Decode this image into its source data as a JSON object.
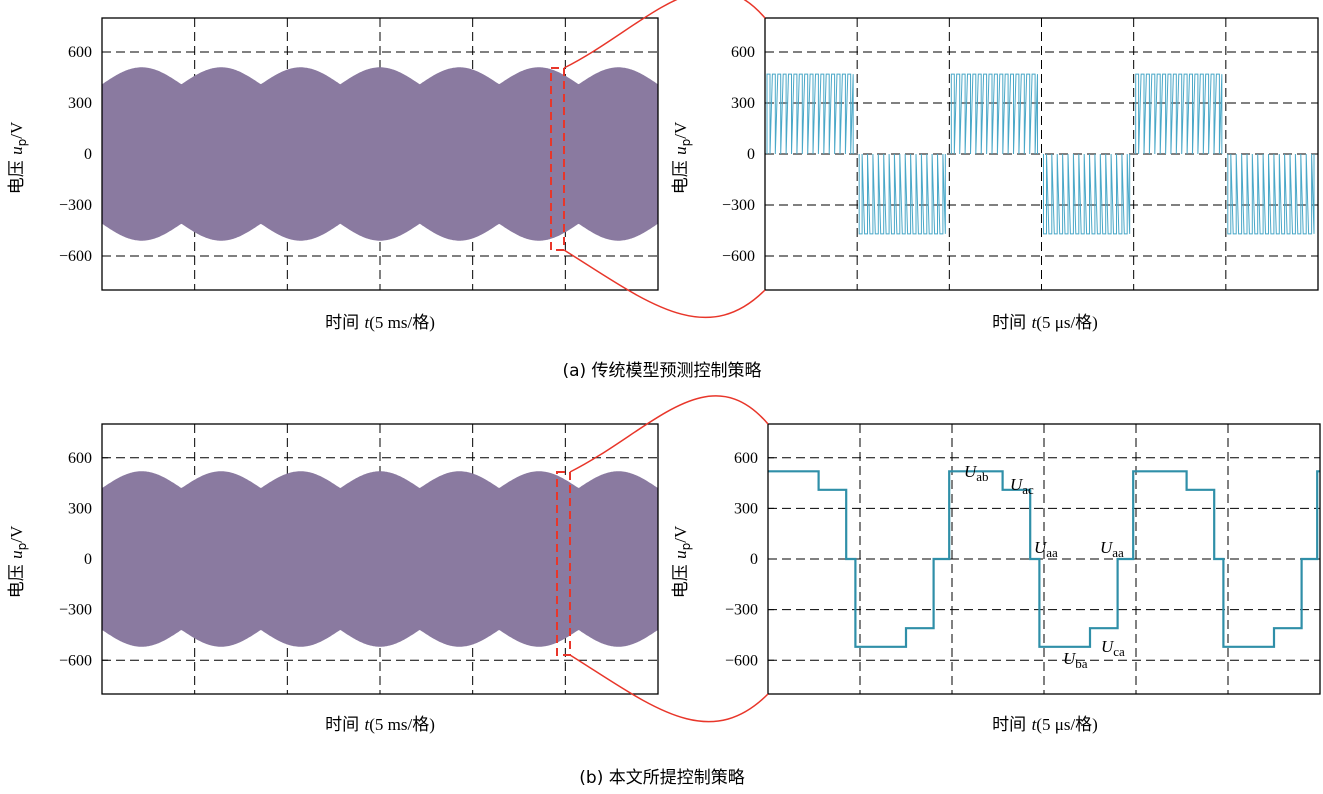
{
  "colors": {
    "wave_a": "#8a7aa0",
    "zoom_a": "#4aa8c8",
    "zoom_b": "#2f8fa8",
    "callout": "#e8362a",
    "grid": "#000000"
  },
  "panels": [
    {
      "caption": "(a) 传统模型预测控制策略",
      "left": {
        "ylabel_cn": "电压",
        "ylabel_var": "u",
        "ylabel_sub": "p",
        "ylabel_unit": "/V",
        "xlabel_cn": "时间",
        "xlabel_var": "t",
        "xlabel_unit": "(5 ms/格)"
      },
      "right": {
        "ylabel_cn": "电压",
        "ylabel_var": "u",
        "ylabel_sub": "p",
        "ylabel_unit": "/V",
        "xlabel_cn": "时间",
        "xlabel_var": "t",
        "xlabel_unit": "(5 μs/格)"
      }
    },
    {
      "caption": "(b) 本文所提控制策略",
      "left": {
        "ylabel_cn": "电压",
        "ylabel_var": "u",
        "ylabel_sub": "p",
        "ylabel_unit": "/V",
        "xlabel_cn": "时间",
        "xlabel_var": "t",
        "xlabel_unit": "(5 ms/格)"
      },
      "right": {
        "ylabel_cn": "电压",
        "ylabel_var": "u",
        "ylabel_sub": "p",
        "ylabel_unit": "/V",
        "xlabel_cn": "时间",
        "xlabel_var": "t",
        "xlabel_unit": "(5 μs/格)"
      }
    }
  ],
  "annotations_b": [
    {
      "main": "U",
      "sub": "ab"
    },
    {
      "main": "U",
      "sub": "ac"
    },
    {
      "main": "U",
      "sub": "aa"
    },
    {
      "main": "U",
      "sub": "aa"
    },
    {
      "main": "U",
      "sub": "ba"
    },
    {
      "main": "U",
      "sub": "ca"
    }
  ],
  "chart_data": [
    {
      "panel": "a-left",
      "type": "line",
      "ylim": [
        -800,
        800
      ],
      "yticks": [
        600,
        300,
        0,
        -300,
        -600
      ],
      "x_divisions": 6,
      "description_values": {
        "envelope_peak": 510,
        "envelope_min": 410,
        "envelope_humps": 7
      }
    },
    {
      "panel": "a-right",
      "type": "line",
      "ylim": [
        -800,
        800
      ],
      "yticks": [
        600,
        300,
        0,
        -300,
        -600
      ],
      "x_divisions": 6,
      "levels": [
        470,
        0,
        -470
      ],
      "segments": [
        {
          "from": 0.0,
          "to": 1.0,
          "base": 0,
          "peak": 470
        },
        {
          "from": 1.0,
          "to": 2.0,
          "base": 0,
          "peak": -470
        },
        {
          "from": 2.0,
          "to": 3.0,
          "base": 0,
          "peak": 470
        },
        {
          "from": 3.0,
          "to": 4.0,
          "base": 0,
          "peak": -470
        },
        {
          "from": 4.0,
          "to": 5.0,
          "base": 0,
          "peak": 470
        },
        {
          "from": 5.0,
          "to": 6.0,
          "base": 0,
          "peak": -470
        }
      ]
    },
    {
      "panel": "b-left",
      "type": "line",
      "ylim": [
        -800,
        800
      ],
      "yticks": [
        600,
        300,
        0,
        -300,
        -600
      ],
      "x_divisions": 6,
      "description_values": {
        "envelope_peak": 520,
        "envelope_min": 420,
        "envelope_humps": 7
      }
    },
    {
      "panel": "b-right",
      "type": "line",
      "ylim": [
        -800,
        800
      ],
      "yticks": [
        600,
        300,
        0,
        -300,
        -600
      ],
      "x_divisions": 6,
      "steps": [
        [
          0.0,
          520
        ],
        [
          0.55,
          520
        ],
        [
          0.55,
          410
        ],
        [
          0.85,
          410
        ],
        [
          0.85,
          0
        ],
        [
          0.95,
          0
        ],
        [
          0.95,
          -520
        ],
        [
          1.5,
          -520
        ],
        [
          1.5,
          -410
        ],
        [
          1.8,
          -410
        ],
        [
          1.8,
          0
        ],
        [
          1.97,
          0
        ],
        [
          1.97,
          520
        ],
        [
          2.55,
          520
        ],
        [
          2.55,
          410
        ],
        [
          2.85,
          410
        ],
        [
          2.85,
          0
        ],
        [
          2.95,
          0
        ],
        [
          2.95,
          -520
        ],
        [
          3.5,
          -520
        ],
        [
          3.5,
          -410
        ],
        [
          3.8,
          -410
        ],
        [
          3.8,
          0
        ],
        [
          3.97,
          0
        ],
        [
          3.97,
          520
        ],
        [
          4.55,
          520
        ],
        [
          4.55,
          410
        ],
        [
          4.85,
          410
        ],
        [
          4.85,
          0
        ],
        [
          4.95,
          0
        ],
        [
          4.95,
          -520
        ],
        [
          5.5,
          -520
        ],
        [
          5.5,
          -410
        ],
        [
          5.8,
          -410
        ],
        [
          5.8,
          0
        ],
        [
          5.97,
          0
        ],
        [
          5.97,
          520
        ],
        [
          6.0,
          520
        ]
      ]
    }
  ]
}
